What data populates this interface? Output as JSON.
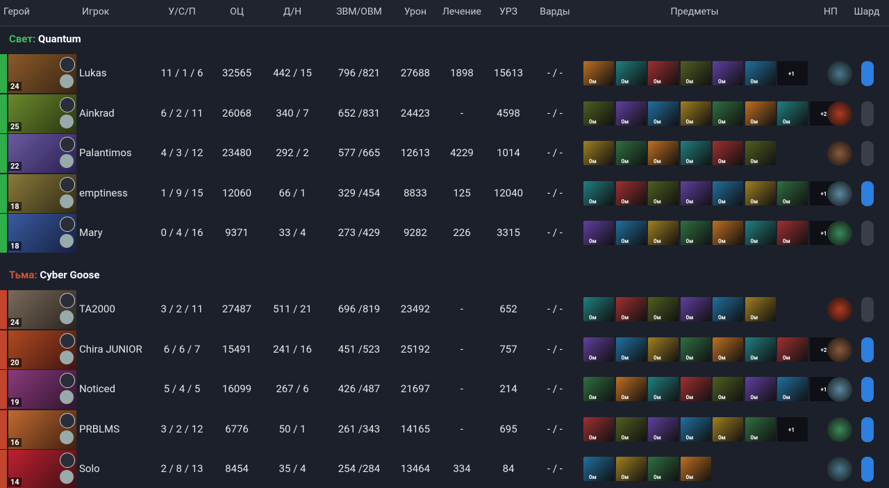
{
  "header": {
    "columns": [
      "Герой",
      "Игрок",
      "У/С/П",
      "ОЦ",
      "Д/Н",
      "ЗВМ/ОВМ",
      "Урон",
      "Лечение",
      "УРЗ",
      "Варды",
      "Предметы",
      "НП",
      "Шард"
    ]
  },
  "teams": [
    {
      "side": "Свет:",
      "name": "Quantum",
      "players": [
        {
          "level": "24",
          "name": "Lukas",
          "stats": [
            "11 / 1 / 6",
            "32565",
            "442 / 15",
            "796 /821",
            "27688",
            "1898",
            "15613",
            "- / -"
          ],
          "items": [
            "0м",
            "0м",
            "0м",
            "0м",
            "0м",
            "0м"
          ],
          "extra": "+1",
          "shard": true
        },
        {
          "level": "25",
          "name": "Ainkrad",
          "stats": [
            "6 / 2 / 11",
            "26068",
            "340 / 7",
            "652 /831",
            "24423",
            "-",
            "4598",
            "- / -"
          ],
          "items": [
            "0м",
            "0м",
            "0м",
            "0м",
            "0м",
            "0м",
            "0м"
          ],
          "extra": "+2",
          "shard": false
        },
        {
          "level": "22",
          "name": "Palantimos",
          "stats": [
            "4 / 3 / 12",
            "23480",
            "292 / 2",
            "577 /665",
            "12613",
            "4229",
            "1014",
            "- / -"
          ],
          "items": [
            "0м",
            "0м",
            "0м",
            "0м",
            "0м",
            "0м"
          ],
          "shard": false
        },
        {
          "level": "18",
          "name": "emptiness",
          "stats": [
            "1 / 9 / 15",
            "12060",
            "66 / 1",
            "329 /454",
            "8833",
            "125",
            "12040",
            "- / -"
          ],
          "items": [
            "0м",
            "0м",
            "0м",
            "0м",
            "0м",
            "0м",
            "0м"
          ],
          "extra": "+1",
          "shard": true
        },
        {
          "level": "18",
          "name": "Mary",
          "stats": [
            "0 / 4 / 16",
            "9371",
            "33 / 4",
            "273 /429",
            "9282",
            "226",
            "3315",
            "- / -"
          ],
          "items": [
            "0м",
            "0м",
            "0м",
            "0м",
            "0м",
            "0м",
            "0м"
          ],
          "extra": "+1",
          "shard": false
        }
      ]
    },
    {
      "side": "Тьма:",
      "name": "Cyber Goose",
      "players": [
        {
          "level": "24",
          "name": "TA2000",
          "stats": [
            "3 / 2 / 11",
            "27487",
            "511 / 21",
            "696 /819",
            "23492",
            "-",
            "652",
            "- / -"
          ],
          "items": [
            "0м",
            "0м",
            "0м",
            "0м",
            "0м",
            "0м"
          ],
          "shard": false
        },
        {
          "level": "20",
          "name": "Chira JUNIOR",
          "stats": [
            "6 / 6 / 7",
            "15491",
            "241 / 16",
            "451 /523",
            "25192",
            "-",
            "757",
            "- / -"
          ],
          "items": [
            "0м",
            "0м",
            "0м",
            "0м",
            "0м",
            "0м",
            "0м"
          ],
          "extra": "+2",
          "shard": true
        },
        {
          "level": "19",
          "name": "Noticed",
          "stats": [
            "5 / 4 / 5",
            "16099",
            "267 / 6",
            "426 /487",
            "21697",
            "-",
            "214",
            "- / -"
          ],
          "items": [
            "0м",
            "0м",
            "0м",
            "0м",
            "0м",
            "0м",
            "0м"
          ],
          "extra": "+1",
          "shard": true
        },
        {
          "level": "16",
          "name": "PRBLMS",
          "stats": [
            "3 / 2 / 12",
            "6776",
            "50 / 1",
            "261 /343",
            "14165",
            "-",
            "695",
            "- / -"
          ],
          "items": [
            "0м",
            "0м",
            "0м",
            "0м",
            "0м",
            "0м"
          ],
          "extra": "+1",
          "shard": true
        },
        {
          "level": "14",
          "name": "Solo",
          "stats": [
            "2 / 8 / 13",
            "8454",
            "35 / 4",
            "254 /284",
            "13464",
            "334",
            "84",
            "- / -"
          ],
          "items": [
            "0м",
            "0м",
            "0м",
            "0м"
          ],
          "shard": true
        }
      ]
    }
  ]
}
